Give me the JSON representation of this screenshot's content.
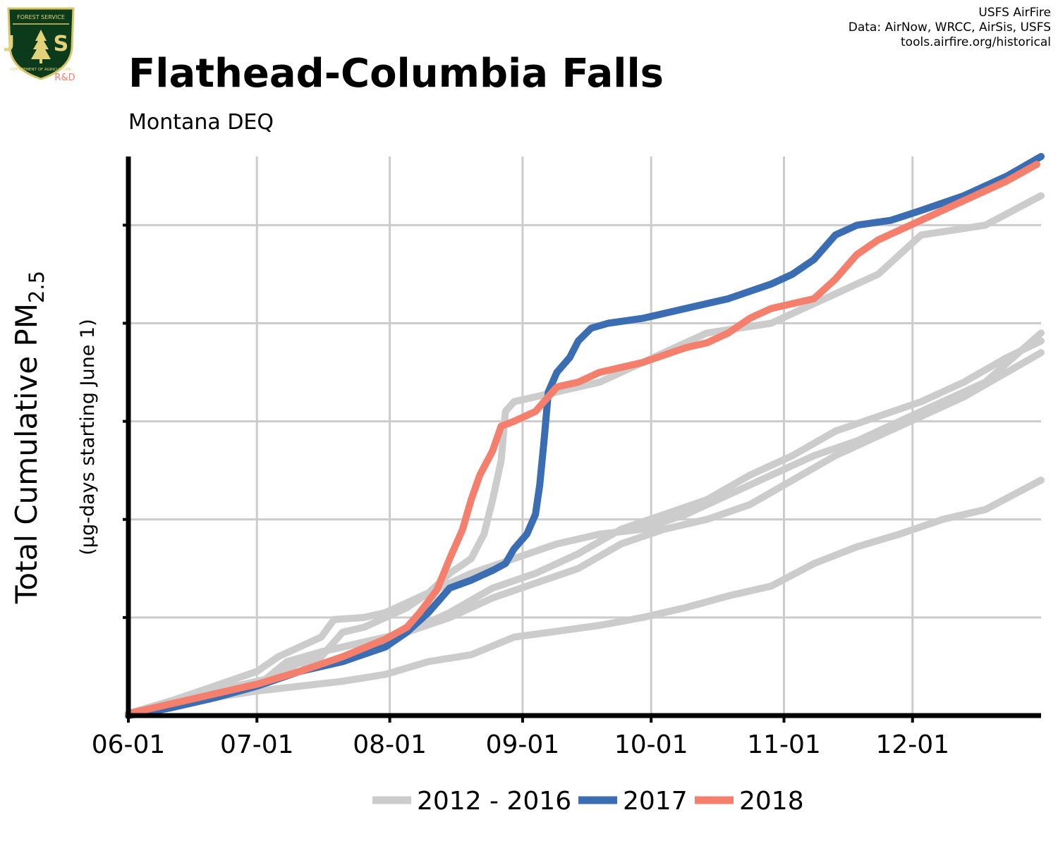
{
  "logo": {
    "top_text": "FOREST SERVICE",
    "center_text": "U S",
    "bottom_text": "DEPARTMENT OF AGRICULTURE",
    "rd_text": "R&D"
  },
  "credits": [
    "USFS AirFire",
    "Data: AirNow, WRCC, AirSis, USFS",
    "tools.airfire.org/historical"
  ],
  "colors": {
    "historical": "#cccccc",
    "y2017": "#3b6db3",
    "y2018": "#f47f6d",
    "grid": "#cccccc",
    "axis": "#000000"
  },
  "chart_data": {
    "type": "line",
    "title": "Flathead-Columbia Falls",
    "subtitle": "Montana DEQ",
    "ylabel": "Total Cumulative PM",
    "ylabel_subscript": "2.5",
    "ylabel_units": "(µg-days starting June 1)",
    "xlabel": "",
    "x_type": "date",
    "xlim": [
      "06-01",
      "12-31"
    ],
    "ylim": [
      0,
      5.7
    ],
    "y_tick_labels_shown": false,
    "grid": true,
    "x_ticks": [
      {
        "label": "06-01",
        "day": 0
      },
      {
        "label": "07-01",
        "day": 30
      },
      {
        "label": "08-01",
        "day": 61
      },
      {
        "label": "09-01",
        "day": 92
      },
      {
        "label": "10-01",
        "day": 122
      },
      {
        "label": "11-01",
        "day": 153
      },
      {
        "label": "12-01",
        "day": 183
      }
    ],
    "y_gridlines": [
      1,
      2,
      3,
      4,
      5
    ],
    "legend": {
      "position": "bottom",
      "entries": [
        {
          "label": "2012 - 2016",
          "color": "#cccccc"
        },
        {
          "label": "2017",
          "color": "#3b6db3"
        },
        {
          "label": "2018",
          "color": "#f47f6d"
        }
      ]
    },
    "series": [
      {
        "group": "2012 - 2016",
        "color": "#cccccc",
        "points": [
          [
            0,
            0.02
          ],
          [
            10,
            0.15
          ],
          [
            20,
            0.25
          ],
          [
            30,
            0.35
          ],
          [
            40,
            0.45
          ],
          [
            45,
            0.6
          ],
          [
            50,
            0.85
          ],
          [
            55,
            0.9
          ],
          [
            60,
            1.0
          ],
          [
            65,
            1.1
          ],
          [
            70,
            1.25
          ],
          [
            75,
            1.45
          ],
          [
            80,
            1.6
          ],
          [
            83,
            1.85
          ],
          [
            85,
            2.2
          ],
          [
            87,
            2.6
          ],
          [
            88,
            3.1
          ],
          [
            90,
            3.2
          ],
          [
            100,
            3.3
          ],
          [
            110,
            3.4
          ],
          [
            120,
            3.6
          ],
          [
            125,
            3.7
          ],
          [
            135,
            3.9
          ],
          [
            150,
            4.0
          ],
          [
            165,
            4.3
          ],
          [
            175,
            4.5
          ],
          [
            185,
            4.9
          ],
          [
            200,
            5.0
          ],
          [
            213,
            5.3
          ]
        ]
      },
      {
        "group": "2012 - 2016",
        "color": "#cccccc",
        "points": [
          [
            0,
            0.0
          ],
          [
            10,
            0.12
          ],
          [
            20,
            0.22
          ],
          [
            30,
            0.3
          ],
          [
            37,
            0.55
          ],
          [
            45,
            0.65
          ],
          [
            55,
            0.75
          ],
          [
            65,
            0.85
          ],
          [
            75,
            1.0
          ],
          [
            85,
            1.2
          ],
          [
            95,
            1.35
          ],
          [
            105,
            1.5
          ],
          [
            115,
            1.75
          ],
          [
            125,
            1.9
          ],
          [
            135,
            2.0
          ],
          [
            145,
            2.15
          ],
          [
            155,
            2.4
          ],
          [
            165,
            2.65
          ],
          [
            175,
            2.85
          ],
          [
            185,
            3.05
          ],
          [
            195,
            3.25
          ],
          [
            205,
            3.5
          ],
          [
            213,
            3.7
          ]
        ]
      },
      {
        "group": "2012 - 2016",
        "color": "#cccccc",
        "points": [
          [
            0,
            0.0
          ],
          [
            10,
            0.15
          ],
          [
            20,
            0.3
          ],
          [
            30,
            0.45
          ],
          [
            35,
            0.6
          ],
          [
            40,
            0.7
          ],
          [
            45,
            0.8
          ],
          [
            48,
            0.98
          ],
          [
            55,
            1.0
          ],
          [
            60,
            1.05
          ],
          [
            70,
            1.25
          ],
          [
            80,
            1.45
          ],
          [
            90,
            1.6
          ],
          [
            100,
            1.75
          ],
          [
            110,
            1.85
          ],
          [
            120,
            1.9
          ],
          [
            130,
            2.05
          ],
          [
            140,
            2.25
          ],
          [
            150,
            2.45
          ],
          [
            160,
            2.65
          ],
          [
            170,
            2.8
          ],
          [
            180,
            3.0
          ],
          [
            190,
            3.2
          ],
          [
            200,
            3.4
          ],
          [
            213,
            3.9
          ]
        ]
      },
      {
        "group": "2012 - 2016",
        "color": "#cccccc",
        "points": [
          [
            0,
            0.0
          ],
          [
            15,
            0.15
          ],
          [
            30,
            0.25
          ],
          [
            40,
            0.3
          ],
          [
            50,
            0.35
          ],
          [
            60,
            0.42
          ],
          [
            70,
            0.55
          ],
          [
            80,
            0.62
          ],
          [
            90,
            0.8
          ],
          [
            100,
            0.86
          ],
          [
            110,
            0.92
          ],
          [
            120,
            1.0
          ],
          [
            130,
            1.1
          ],
          [
            140,
            1.22
          ],
          [
            150,
            1.32
          ],
          [
            160,
            1.55
          ],
          [
            170,
            1.72
          ],
          [
            180,
            1.85
          ],
          [
            190,
            2.0
          ],
          [
            200,
            2.1
          ],
          [
            213,
            2.4
          ]
        ]
      },
      {
        "group": "2012 - 2016",
        "color": "#cccccc",
        "points": [
          [
            0,
            0.02
          ],
          [
            10,
            0.15
          ],
          [
            20,
            0.22
          ],
          [
            30,
            0.32
          ],
          [
            45,
            0.65
          ],
          [
            55,
            0.75
          ],
          [
            65,
            0.85
          ],
          [
            75,
            1.05
          ],
          [
            85,
            1.3
          ],
          [
            95,
            1.45
          ],
          [
            105,
            1.65
          ],
          [
            115,
            1.9
          ],
          [
            125,
            2.05
          ],
          [
            135,
            2.2
          ],
          [
            145,
            2.45
          ],
          [
            155,
            2.65
          ],
          [
            165,
            2.9
          ],
          [
            175,
            3.05
          ],
          [
            185,
            3.2
          ],
          [
            195,
            3.4
          ],
          [
            205,
            3.65
          ],
          [
            213,
            3.82
          ]
        ]
      },
      {
        "group": "2017",
        "color": "#3b6db3",
        "points": [
          [
            0,
            0.0
          ],
          [
            10,
            0.08
          ],
          [
            20,
            0.18
          ],
          [
            30,
            0.3
          ],
          [
            40,
            0.45
          ],
          [
            50,
            0.55
          ],
          [
            60,
            0.7
          ],
          [
            65,
            0.85
          ],
          [
            70,
            1.05
          ],
          [
            73,
            1.2
          ],
          [
            75,
            1.3
          ],
          [
            80,
            1.38
          ],
          [
            85,
            1.48
          ],
          [
            88,
            1.55
          ],
          [
            90,
            1.7
          ],
          [
            93,
            1.85
          ],
          [
            95,
            2.05
          ],
          [
            96,
            2.35
          ],
          [
            97,
            2.8
          ],
          [
            98,
            3.3
          ],
          [
            100,
            3.5
          ],
          [
            103,
            3.65
          ],
          [
            105,
            3.82
          ],
          [
            108,
            3.95
          ],
          [
            112,
            4.0
          ],
          [
            120,
            4.05
          ],
          [
            130,
            4.15
          ],
          [
            140,
            4.25
          ],
          [
            150,
            4.4
          ],
          [
            155,
            4.5
          ],
          [
            160,
            4.65
          ],
          [
            165,
            4.9
          ],
          [
            170,
            5.0
          ],
          [
            178,
            5.05
          ],
          [
            185,
            5.15
          ],
          [
            195,
            5.3
          ],
          [
            205,
            5.5
          ],
          [
            213,
            5.7
          ]
        ]
      },
      {
        "group": "2018",
        "color": "#f47f6d",
        "points": [
          [
            0,
            0.02
          ],
          [
            10,
            0.12
          ],
          [
            20,
            0.22
          ],
          [
            30,
            0.32
          ],
          [
            40,
            0.45
          ],
          [
            50,
            0.6
          ],
          [
            60,
            0.78
          ],
          [
            65,
            0.9
          ],
          [
            68,
            1.05
          ],
          [
            72,
            1.28
          ],
          [
            75,
            1.6
          ],
          [
            78,
            1.9
          ],
          [
            80,
            2.2
          ],
          [
            82,
            2.45
          ],
          [
            85,
            2.7
          ],
          [
            87,
            2.95
          ],
          [
            90,
            3.0
          ],
          [
            95,
            3.1
          ],
          [
            100,
            3.35
          ],
          [
            105,
            3.4
          ],
          [
            110,
            3.5
          ],
          [
            120,
            3.6
          ],
          [
            130,
            3.75
          ],
          [
            135,
            3.8
          ],
          [
            140,
            3.9
          ],
          [
            145,
            4.05
          ],
          [
            150,
            4.15
          ],
          [
            160,
            4.25
          ],
          [
            165,
            4.45
          ],
          [
            170,
            4.7
          ],
          [
            175,
            4.85
          ],
          [
            185,
            5.05
          ],
          [
            195,
            5.25
          ],
          [
            205,
            5.45
          ],
          [
            212,
            5.62
          ]
        ]
      }
    ]
  }
}
